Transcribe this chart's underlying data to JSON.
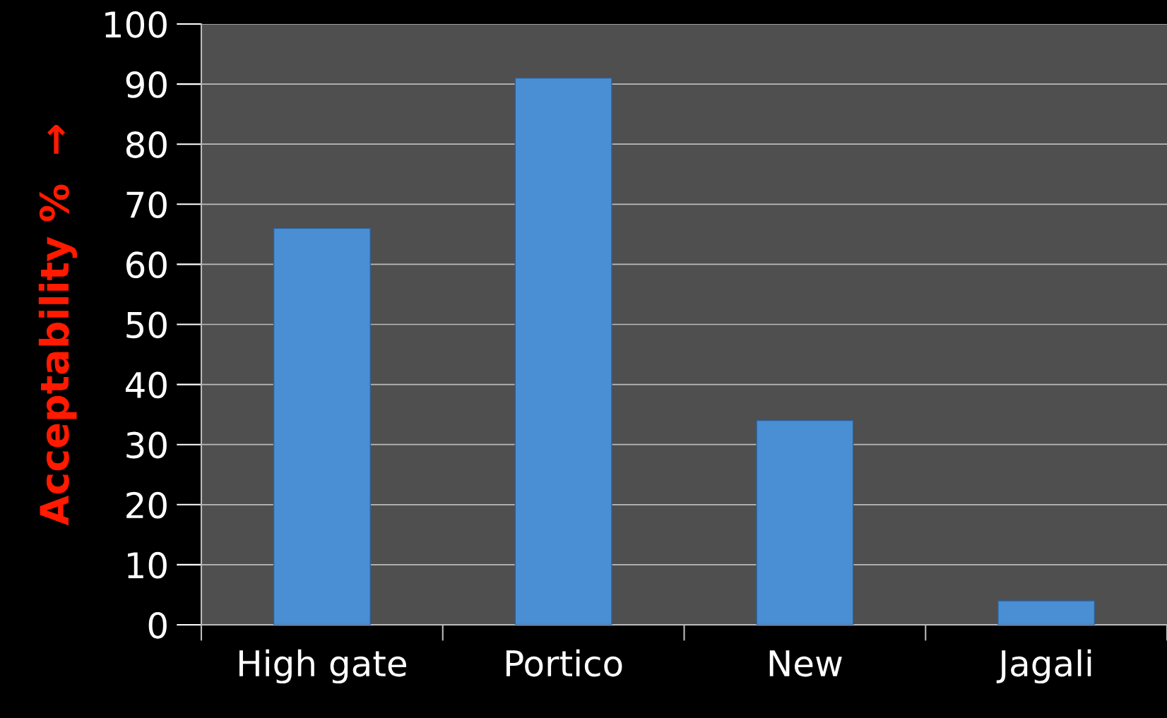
{
  "chart_data": {
    "type": "bar",
    "ylabel": "Acceptability %  →",
    "categories": [
      "High gate",
      "Portico",
      "New",
      "Jagali"
    ],
    "values": [
      66,
      91,
      34,
      4
    ],
    "color": "#4a8fd4",
    "ylim": [
      0,
      100
    ],
    "yticks": [
      0,
      10,
      20,
      30,
      40,
      50,
      60,
      70,
      80,
      90,
      100
    ],
    "grid": "y",
    "legend": false
  }
}
